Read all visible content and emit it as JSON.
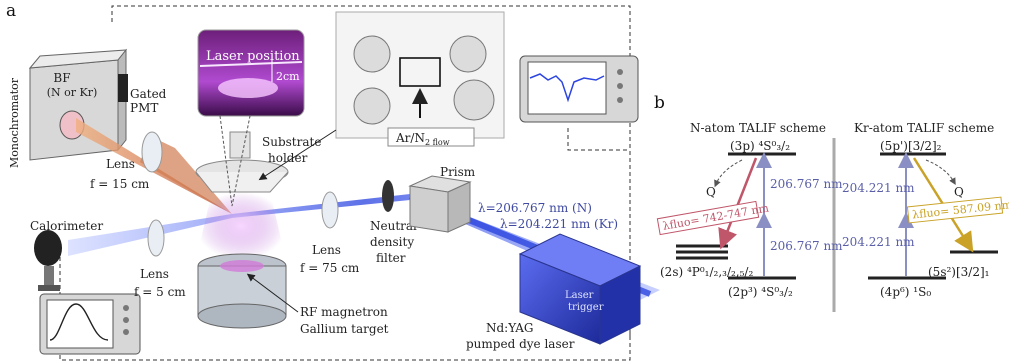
{
  "panel_a": {
    "letter": "a",
    "monochromator": {
      "label": "Monochromator",
      "bf_line1": "BF",
      "bf_line2": "(N or Kr)",
      "pmt_line1": "Gated",
      "pmt_line2": "PMT"
    },
    "inset": {
      "laser_position": "Laser position",
      "scale": "2cm"
    },
    "chamber": {
      "gas_flow": "Ar/N",
      "gas_sub": "2 flow"
    },
    "substrate_holder_line1": "Substrate",
    "substrate_holder_line2": "holder",
    "lens_left_label": "Lens",
    "lens_left_focal": "f = 15 cm",
    "calorimeter": "Calorimeter",
    "lens_bottom_label": "Lens",
    "lens_bottom_focal": "f = 5 cm",
    "lens_right_label": "Lens",
    "lens_right_focal": "f = 75 cm",
    "filter_line1": "Neutral",
    "filter_line2": "density",
    "filter_line3": "filter",
    "prism": "Prism",
    "lambda_n": "λ=206.767 nm (N)",
    "lambda_kr": "λ=204.221 nm (Kr)",
    "rf_magnetron": "RF magnetron",
    "gallium_target": "Gallium target",
    "laser_line1": "Nd:YAG",
    "laser_line2": "pumped dye laser",
    "laser_trigger_line1": "Laser",
    "laser_trigger_line2": "trigger"
  },
  "panel_b": {
    "letter": "b",
    "n_scheme": {
      "title": "N-atom TALIF scheme",
      "upper_level": "(3p) ⁴S⁰₃/₂",
      "mid_level": "(2s) ⁴P⁰₁/₂,₃/₂,₅/₂",
      "ground_level": "(2p³) ⁴S⁰₃/₂",
      "excitation_1": "206.767 nm",
      "excitation_2": "206.767 nm",
      "fluorescence": "λfluo= 742-747 nm",
      "quench": "Q"
    },
    "kr_scheme": {
      "title": "Kr-atom TALIF scheme",
      "upper_level": "(5p')[3/2]₂",
      "mid_level": "(5s²)[3/2]₁",
      "ground_level": "(4p⁶) ¹S₀",
      "excitation_1": "204.221 nm",
      "excitation_2": "204.221 nm",
      "fluorescence": "λfluo= 587.09 nm",
      "quench": "Q"
    }
  },
  "colors": {
    "uv_beam": "#3a4fd0",
    "fluorescence_beam": "#d98a4a",
    "n_fluorescence": "#c0566a",
    "kr_fluorescence": "#c9a227",
    "level_line": "#222222",
    "excitation_arrow": "#8a8fc4"
  }
}
